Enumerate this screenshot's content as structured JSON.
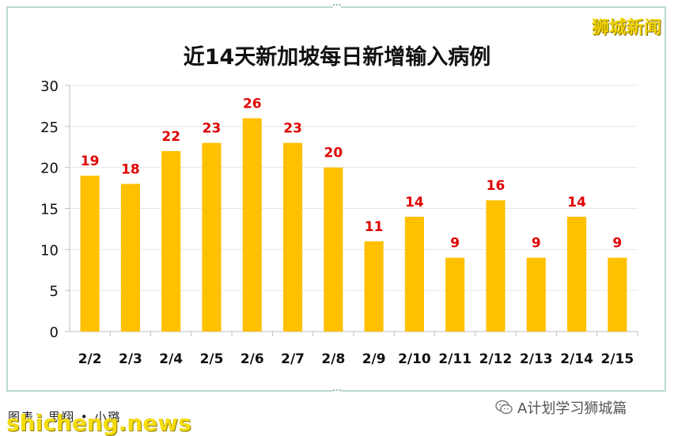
{
  "brand_label": "狮城新闻",
  "footer": {
    "credit": "图表：思翔 • 小璐",
    "watermark": "shicheng.news",
    "wechat_account": "A计划学习狮城篇"
  },
  "chart_data": {
    "type": "bar",
    "title": "近14天新加坡每日新增输入病例",
    "xlabel": "",
    "ylabel": "",
    "categories": [
      "2/2",
      "2/3",
      "2/4",
      "2/5",
      "2/6",
      "2/7",
      "2/8",
      "2/9",
      "2/10",
      "2/11",
      "2/12",
      "2/13",
      "2/14",
      "2/15"
    ],
    "values": [
      19,
      18,
      22,
      23,
      26,
      23,
      20,
      11,
      14,
      9,
      16,
      9,
      14,
      9
    ],
    "ylim": [
      0,
      30
    ],
    "yticks": [
      0,
      5,
      10,
      15,
      20,
      25,
      30
    ],
    "grid": true,
    "legend": "none",
    "bar_color": "#ffc000",
    "label_color": "#e00000"
  }
}
